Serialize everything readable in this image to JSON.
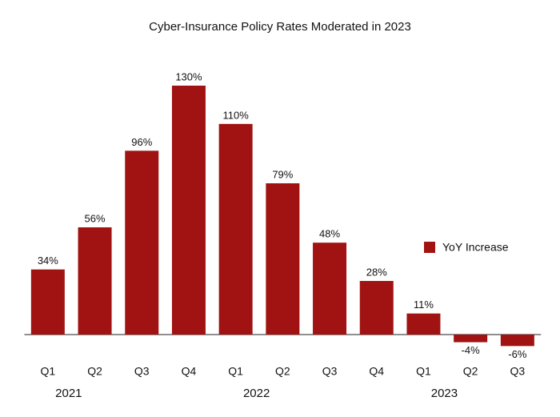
{
  "chart_data": {
    "type": "bar",
    "title": "Cyber-Insurance Policy Rates Moderated in 2023",
    "categories": [
      "Q1",
      "Q2",
      "Q3",
      "Q4",
      "Q1",
      "Q2",
      "Q3",
      "Q4",
      "Q1",
      "Q2",
      "Q3"
    ],
    "category_groups": [
      "2021",
      "2022",
      "2023"
    ],
    "series": [
      {
        "name": "YoY Increase",
        "color": "#a11312",
        "values": [
          34,
          56,
          96,
          130,
          110,
          79,
          48,
          28,
          11,
          -4,
          -6
        ],
        "value_labels": [
          "34%",
          "56%",
          "96%",
          "130%",
          "110%",
          "79%",
          "48%",
          "28%",
          "11%",
          "-4%",
          "-6%"
        ]
      }
    ],
    "legend": "right"
  }
}
